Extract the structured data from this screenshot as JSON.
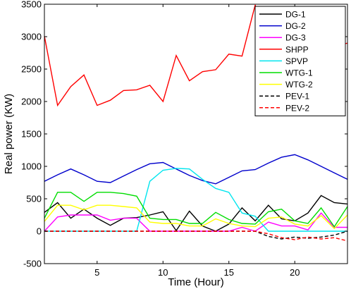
{
  "chart_data": {
    "type": "line",
    "title": "",
    "xlabel": "Time (Hour)",
    "ylabel": "Real power (KW)",
    "xlim": [
      1,
      24
    ],
    "ylim": [
      -500,
      3500
    ],
    "xticks": [
      5,
      10,
      15,
      20
    ],
    "yticks": [
      -500,
      0,
      500,
      1000,
      1500,
      2000,
      2500,
      3000,
      3500
    ],
    "grid": false,
    "legend_position": "top-right",
    "x": [
      1,
      2,
      3,
      4,
      5,
      6,
      7,
      8,
      9,
      10,
      11,
      12,
      13,
      14,
      15,
      16,
      17,
      18,
      19,
      20,
      21,
      22,
      23,
      24
    ],
    "series": [
      {
        "name": "DG-1",
        "color": "#000000",
        "dash": "solid",
        "values": [
          290,
          440,
          200,
          340,
          200,
          90,
          200,
          210,
          250,
          300,
          10,
          310,
          80,
          0,
          110,
          360,
          160,
          400,
          190,
          160,
          280,
          550,
          440,
          420
        ]
      },
      {
        "name": "DG-2",
        "color": "#0000cc",
        "dash": "solid",
        "values": [
          770,
          870,
          960,
          870,
          770,
          750,
          850,
          950,
          1040,
          1060,
          960,
          860,
          780,
          730,
          830,
          930,
          950,
          1050,
          1140,
          1180,
          1100,
          1000,
          900,
          800
        ]
      },
      {
        "name": "DG-3",
        "color": "#ff00ff",
        "dash": "solid",
        "values": [
          0,
          220,
          250,
          250,
          250,
          170,
          200,
          200,
          0,
          0,
          0,
          0,
          0,
          0,
          0,
          60,
          0,
          140,
          80,
          80,
          20,
          280,
          60,
          60
        ]
      },
      {
        "name": "SHPP",
        "color": "#ff0000",
        "dash": "solid",
        "values": [
          3010,
          1940,
          2230,
          2410,
          1940,
          2020,
          2170,
          2180,
          2250,
          2000,
          2710,
          2320,
          2460,
          2490,
          2730,
          2700,
          3490,
          2490,
          2650,
          2690,
          2760,
          2910,
          2850,
          2900
        ]
      },
      {
        "name": "SPVP",
        "color": "#00e5ee",
        "dash": "solid",
        "values": [
          0,
          0,
          0,
          0,
          0,
          0,
          0,
          0,
          770,
          940,
          970,
          960,
          800,
          660,
          600,
          280,
          230,
          0,
          0,
          0,
          0,
          0,
          0,
          0
        ]
      },
      {
        "name": "WTG-1",
        "color": "#00dd00",
        "dash": "solid",
        "values": [
          200,
          600,
          600,
          460,
          600,
          600,
          580,
          540,
          200,
          180,
          180,
          120,
          120,
          290,
          180,
          120,
          110,
          300,
          340,
          160,
          120,
          360,
          70,
          380
        ]
      },
      {
        "name": "WTG-2",
        "color": "#ffff00",
        "dash": "solid",
        "values": [
          150,
          400,
          400,
          330,
          400,
          400,
          380,
          360,
          140,
          120,
          120,
          80,
          80,
          190,
          120,
          80,
          70,
          200,
          220,
          110,
          80,
          240,
          40,
          250
        ]
      },
      {
        "name": "PEV-1",
        "color": "#000000",
        "dash": "dashed",
        "values": [
          0,
          0,
          0,
          0,
          0,
          0,
          0,
          0,
          0,
          0,
          0,
          0,
          0,
          0,
          0,
          0,
          0,
          -80,
          -120,
          -90,
          -110,
          -90,
          -60,
          0
        ]
      },
      {
        "name": "PEV-2",
        "color": "#ff0000",
        "dash": "dashed",
        "values": [
          0,
          0,
          0,
          0,
          0,
          0,
          0,
          0,
          0,
          0,
          0,
          0,
          0,
          0,
          0,
          0,
          0,
          -40,
          -100,
          -130,
          -90,
          -120,
          -100,
          -150
        ]
      }
    ]
  }
}
